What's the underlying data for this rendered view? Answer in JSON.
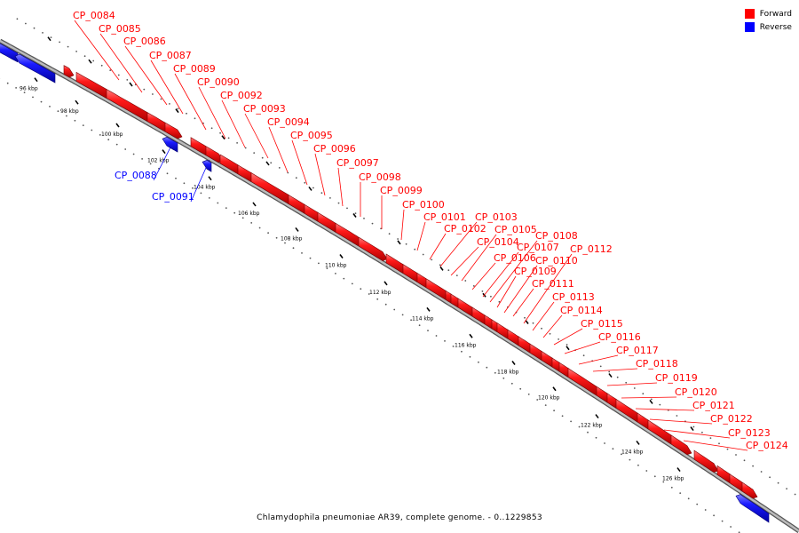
{
  "caption": "Chlamydophila pneumoniae AR39, complete genome. - 0..1229853",
  "legend": [
    {
      "label": "Forward",
      "color": "#ff0000"
    },
    {
      "label": "Reverse",
      "color": "#0000ff"
    }
  ],
  "ticks": [
    "96 kbp",
    "98 kbp",
    "100 kbp",
    "102 kbp",
    "104 kbp",
    "106 kbp",
    "108 kbp",
    "110 kbp",
    "112 kbp",
    "114 kbp",
    "116 kbp",
    "118 kbp",
    "120 kbp",
    "122 kbp",
    "124 kbp",
    "126 kbp"
  ],
  "genes": [
    {
      "name": "CP_0084",
      "strand": "forward"
    },
    {
      "name": "CP_0085",
      "strand": "forward"
    },
    {
      "name": "CP_0086",
      "strand": "forward"
    },
    {
      "name": "CP_0087",
      "strand": "forward"
    },
    {
      "name": "CP_0088",
      "strand": "reverse"
    },
    {
      "name": "CP_0089",
      "strand": "forward"
    },
    {
      "name": "CP_0090",
      "strand": "forward"
    },
    {
      "name": "CP_0091",
      "strand": "reverse"
    },
    {
      "name": "CP_0092",
      "strand": "forward"
    },
    {
      "name": "CP_0093",
      "strand": "forward"
    },
    {
      "name": "CP_0094",
      "strand": "forward"
    },
    {
      "name": "CP_0095",
      "strand": "forward"
    },
    {
      "name": "CP_0096",
      "strand": "forward"
    },
    {
      "name": "CP_0097",
      "strand": "forward"
    },
    {
      "name": "CP_0098",
      "strand": "forward"
    },
    {
      "name": "CP_0099",
      "strand": "forward"
    },
    {
      "name": "CP_0100",
      "strand": "forward"
    },
    {
      "name": "CP_0101",
      "strand": "forward"
    },
    {
      "name": "CP_0102",
      "strand": "forward"
    },
    {
      "name": "CP_0103",
      "strand": "forward"
    },
    {
      "name": "CP_0104",
      "strand": "forward"
    },
    {
      "name": "CP_0105",
      "strand": "forward"
    },
    {
      "name": "CP_0106",
      "strand": "forward"
    },
    {
      "name": "CP_0107",
      "strand": "forward"
    },
    {
      "name": "CP_0108",
      "strand": "forward"
    },
    {
      "name": "CP_0109",
      "strand": "forward"
    },
    {
      "name": "CP_0110",
      "strand": "forward"
    },
    {
      "name": "CP_0111",
      "strand": "forward"
    },
    {
      "name": "CP_0112",
      "strand": "forward"
    },
    {
      "name": "CP_0113",
      "strand": "forward"
    },
    {
      "name": "CP_0114",
      "strand": "forward"
    },
    {
      "name": "CP_0115",
      "strand": "forward"
    },
    {
      "name": "CP_0116",
      "strand": "forward"
    },
    {
      "name": "CP_0117",
      "strand": "forward"
    },
    {
      "name": "CP_0118",
      "strand": "forward"
    },
    {
      "name": "CP_0119",
      "strand": "forward"
    },
    {
      "name": "CP_0120",
      "strand": "forward"
    },
    {
      "name": "CP_0121",
      "strand": "forward"
    },
    {
      "name": "CP_0122",
      "strand": "forward"
    },
    {
      "name": "CP_0123",
      "strand": "forward"
    },
    {
      "name": "CP_0124",
      "strand": "forward"
    }
  ]
}
